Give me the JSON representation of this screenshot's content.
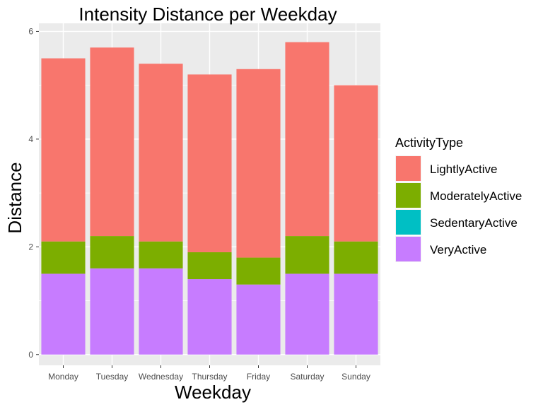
{
  "chart_data": {
    "type": "bar",
    "stacked": true,
    "title": "Intensity Distance per Weekday",
    "xlabel": "Weekday",
    "ylabel": "Distance",
    "categories": [
      "Monday",
      "Tuesday",
      "Wednesday",
      "Thursday",
      "Friday",
      "Saturday",
      "Sunday"
    ],
    "ylim": [
      -0.2,
      6.15
    ],
    "yticks": [
      0,
      2,
      4,
      6
    ],
    "grid": true,
    "legend": {
      "title": "ActivityType",
      "placement": "right"
    },
    "series": [
      {
        "name": "LightlyActive",
        "color": "#F8766D",
        "values": [
          3.4,
          3.5,
          3.3,
          3.3,
          3.5,
          3.6,
          2.9
        ]
      },
      {
        "name": "ModeratelyActive",
        "color": "#7CAE00",
        "values": [
          0.6,
          0.6,
          0.5,
          0.5,
          0.5,
          0.7,
          0.6
        ]
      },
      {
        "name": "SedentaryActive",
        "color": "#00BFC4",
        "values": [
          0.0,
          0.0,
          0.0,
          0.0,
          0.0,
          0.0,
          0.0
        ]
      },
      {
        "name": "VeryActive",
        "color": "#C77CFF",
        "values": [
          1.5,
          1.6,
          1.6,
          1.4,
          1.3,
          1.5,
          1.5
        ]
      }
    ]
  }
}
